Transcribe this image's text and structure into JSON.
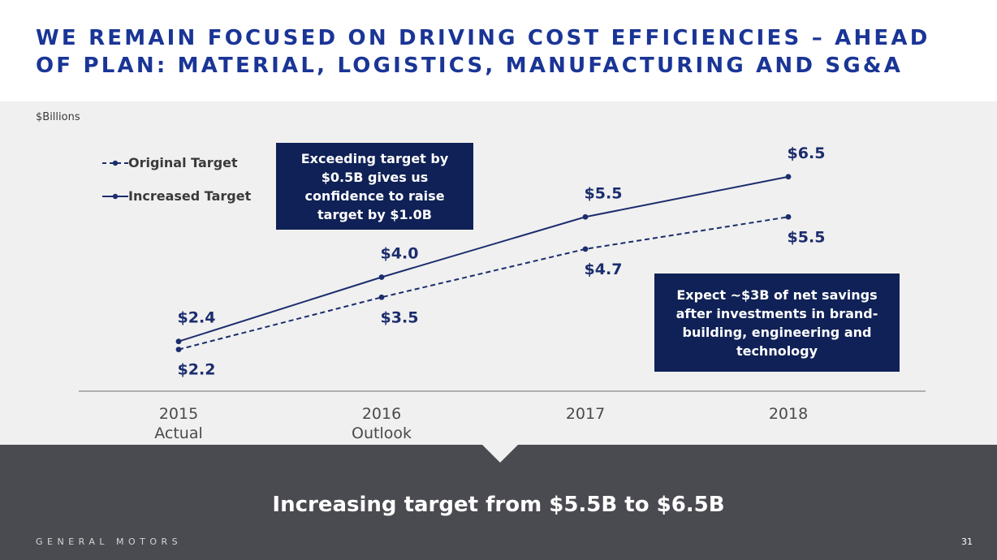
{
  "slide": {
    "title": "WE REMAIN FOCUSED ON DRIVING COST EFFICIENCIES – AHEAD OF PLAN:  MATERIAL, LOGISTICS, MANUFACTURING AND SG&A",
    "unit_label": "$Billions",
    "callout_top": "Exceeding target by $0.5B gives us confidence to raise target by $1.0B",
    "callout_right": "Expect ~$3B of net savings after investments in brand-building, engineering and technology",
    "headline": "Increasing target from $5.5B to $6.5B",
    "brand": "GENERAL MOTORS",
    "page_number": "31"
  },
  "colors": {
    "title": "#1a3596",
    "series": "#1c2d6e",
    "callout": "#0f2156",
    "band_dark": "#4a4a51",
    "chart_bg": "#f0f0f0"
  },
  "chart_data": {
    "type": "line",
    "title": "",
    "xlabel": "",
    "ylabel": "$Billions",
    "categories": [
      [
        "2015",
        "Actual"
      ],
      [
        "2016",
        "Outlook"
      ],
      [
        "2017"
      ],
      [
        "2018"
      ]
    ],
    "ylim": [
      2.0,
      6.7
    ],
    "legend_position": "top-left",
    "series": [
      {
        "name": "Original Target",
        "style": "dashed",
        "values": [
          2.2,
          3.5,
          4.7,
          5.5
        ],
        "labels": [
          "$2.2",
          "$3.5",
          "$4.7",
          "$5.5"
        ],
        "label_side": "below"
      },
      {
        "name": "Increased Target",
        "style": "solid",
        "values": [
          2.4,
          4.0,
          5.5,
          6.5
        ],
        "labels": [
          "$2.4",
          "$4.0",
          "$5.5",
          "$6.5"
        ],
        "label_side": "above"
      }
    ]
  }
}
